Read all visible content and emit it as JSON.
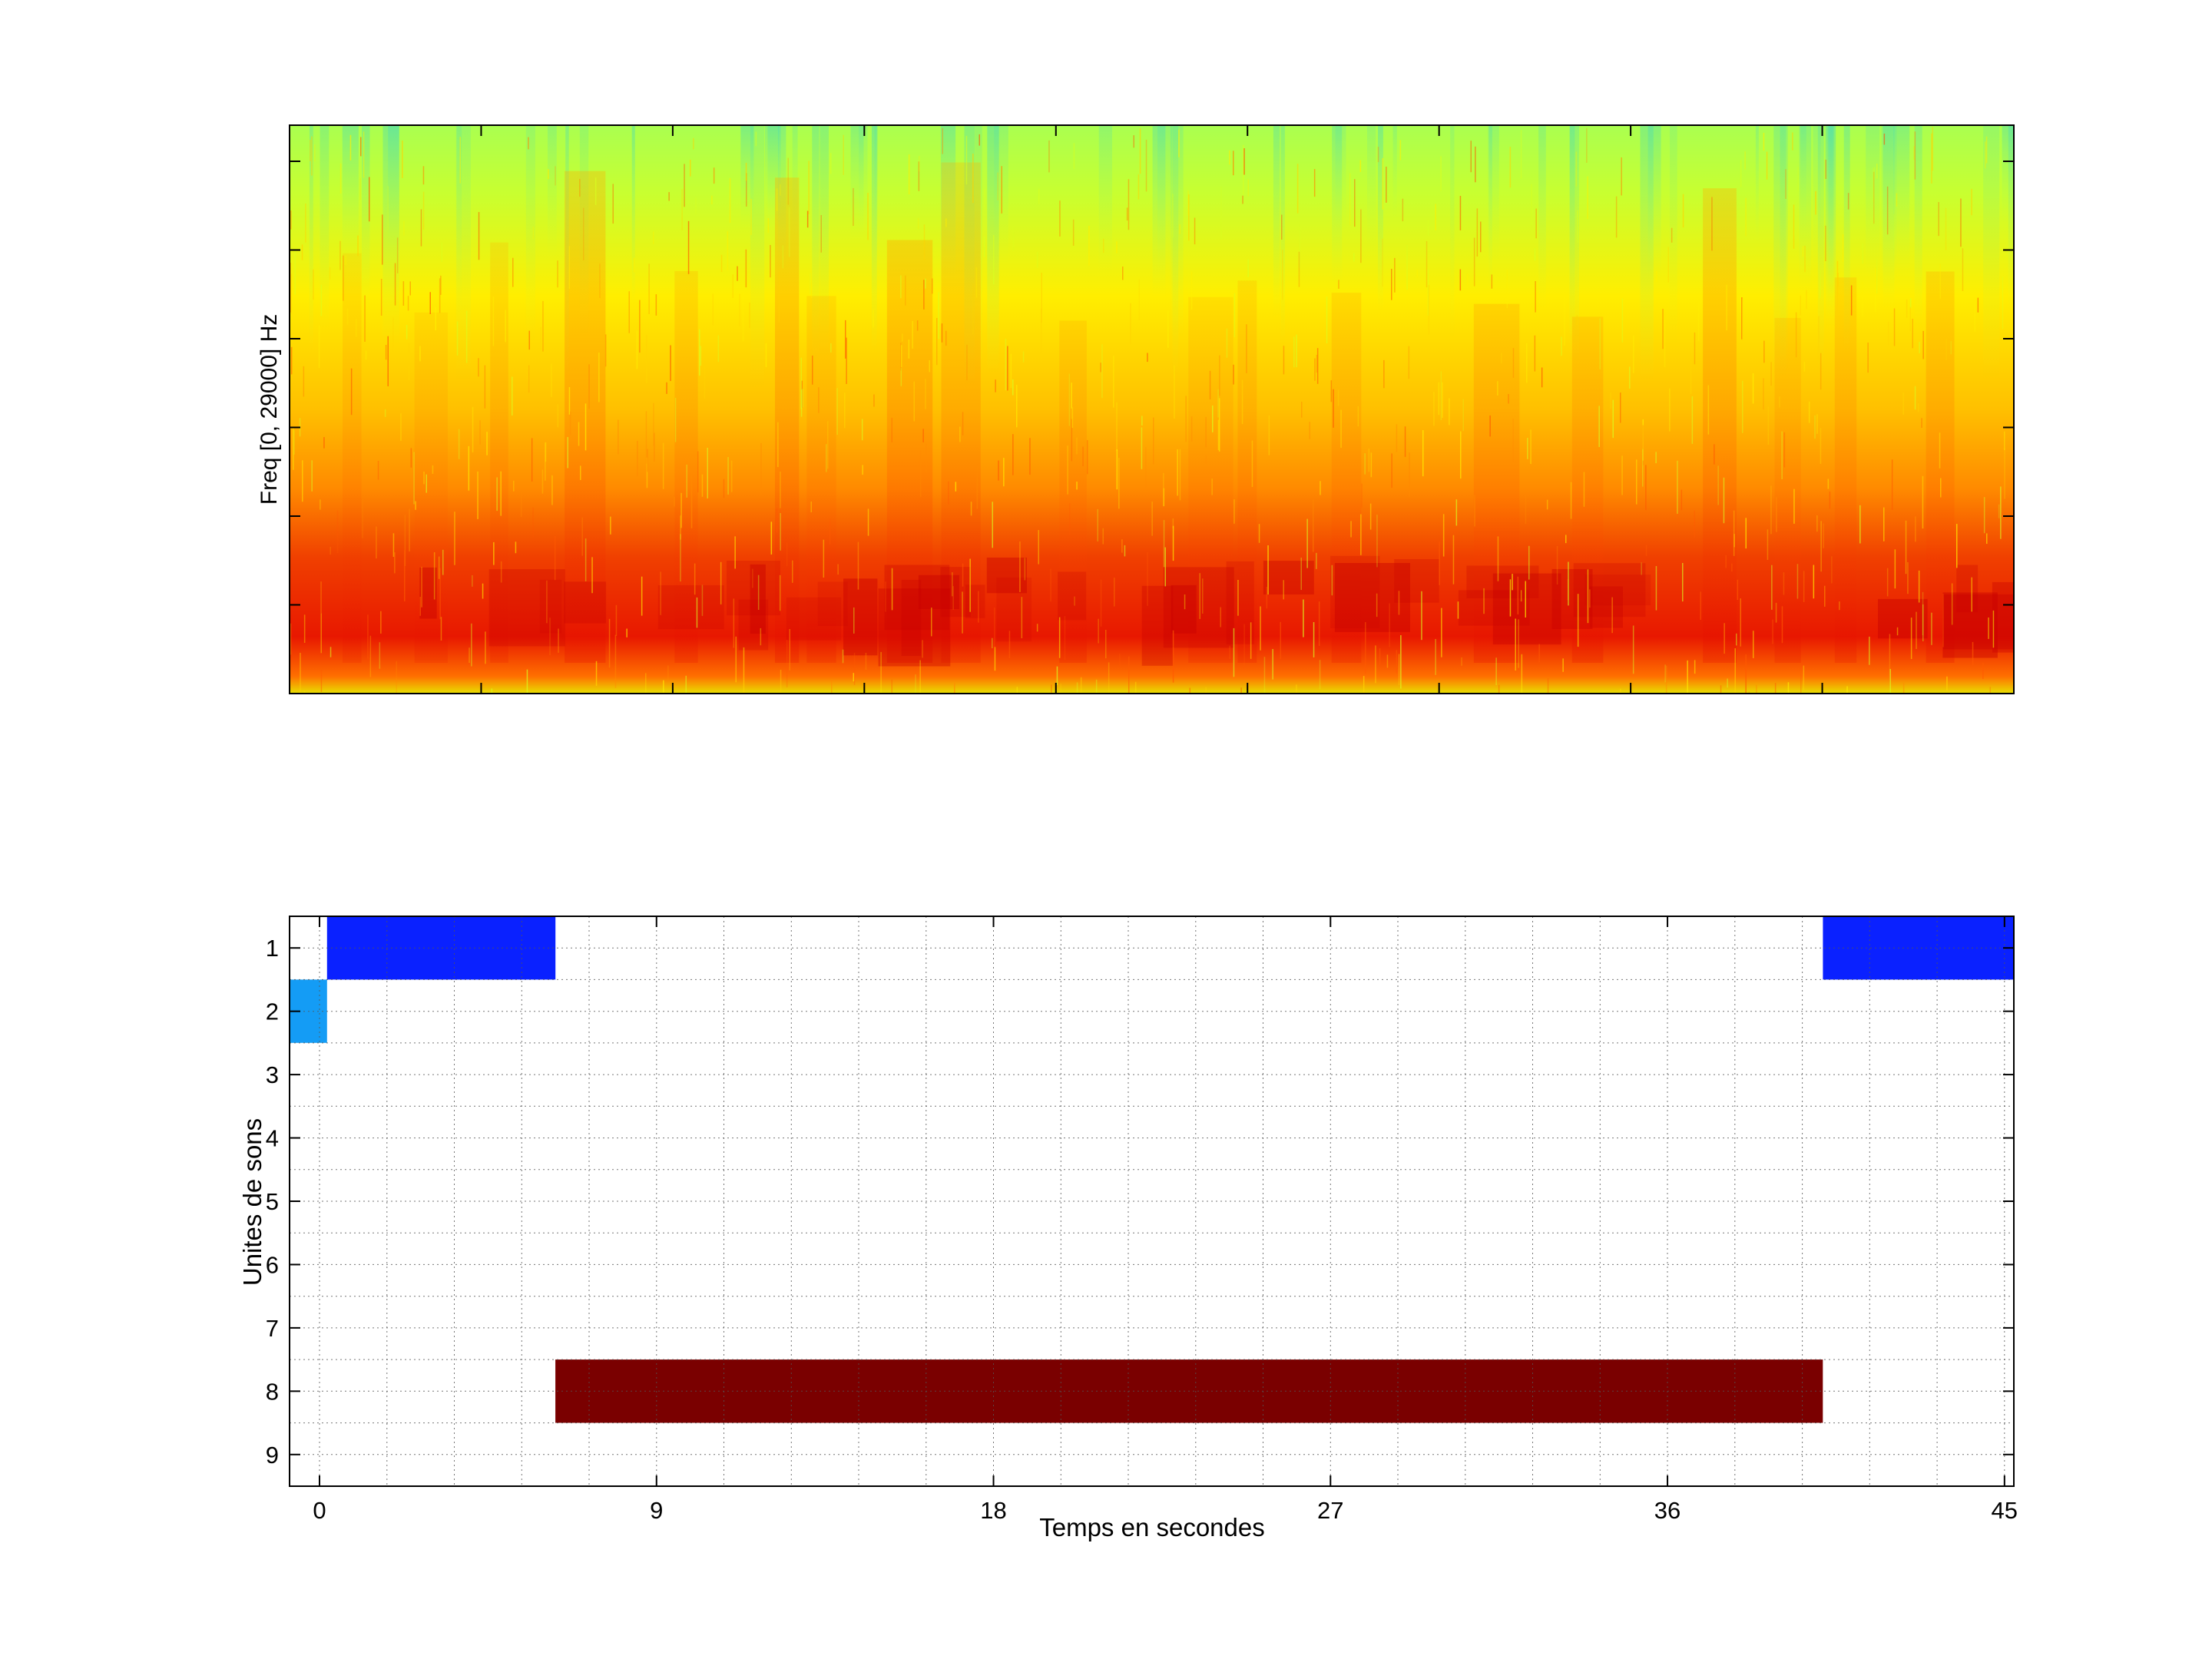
{
  "chart_data": [
    {
      "type": "heatmap",
      "ylabel": "Freq [0, 29000] Hz",
      "xlabel": "",
      "colormap": "jet",
      "low_band_energy": "high (red)",
      "high_band_energy": "low (yellow-green)",
      "colors": {
        "low": "#4fe0a0",
        "mid_low": "#d8ff20",
        "mid": "#ffd400",
        "mid_high": "#ff8a00",
        "high": "#f02000",
        "peak": "#c80000"
      }
    },
    {
      "type": "heatmap",
      "xlabel": "Temps en secondes",
      "ylabel": "Unites de sons",
      "xlim": [
        -0.8,
        45.25
      ],
      "x_ticks": [
        "0",
        "9",
        "18",
        "27",
        "36",
        "45"
      ],
      "y_ticks": [
        "1",
        "2",
        "3",
        "4",
        "5",
        "6",
        "7",
        "8",
        "9"
      ],
      "grid": "on (dotted)",
      "segments": [
        {
          "unit": 1,
          "start": 0.2,
          "end": 6.3,
          "color": "#0a21ff"
        },
        {
          "unit": 1,
          "start": 40.15,
          "end": 45.25,
          "color": "#0a21ff"
        },
        {
          "unit": 2,
          "start": -0.8,
          "end": 0.2,
          "color": "#149cf5"
        },
        {
          "unit": 8,
          "start": 6.3,
          "end": 40.15,
          "color": "#7a0000"
        }
      ]
    }
  ]
}
